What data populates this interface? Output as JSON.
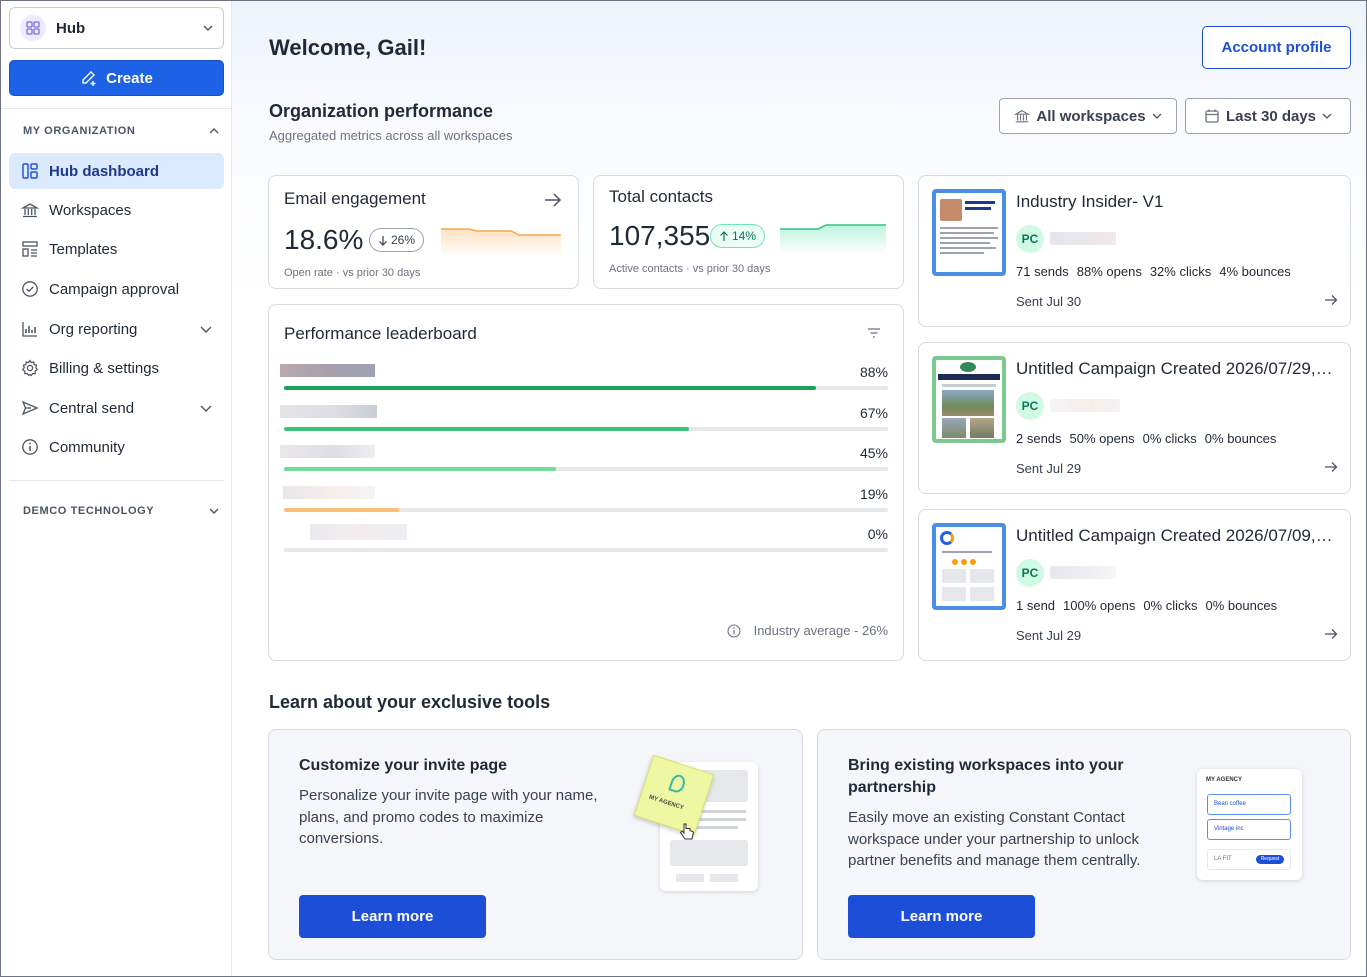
{
  "sidebar": {
    "hub_label": "Hub",
    "create_label": "Create",
    "section_my_org": "MY ORGANIZATION",
    "items": [
      {
        "label": "Hub dashboard",
        "icon": "dashboard-icon",
        "active": true
      },
      {
        "label": "Workspaces",
        "icon": "bank-icon"
      },
      {
        "label": "Templates",
        "icon": "templates-icon"
      },
      {
        "label": "Campaign approval",
        "icon": "check-circle-icon"
      },
      {
        "label": "Org reporting",
        "icon": "chart-icon"
      },
      {
        "label": "Billing & settings",
        "icon": "gear-icon"
      },
      {
        "label": "Central send",
        "icon": "send-icon"
      },
      {
        "label": "Community",
        "icon": "info-icon"
      }
    ],
    "section_demco": "DEMCO TECHNOLOGY"
  },
  "header": {
    "welcome": "Welcome, Gail!",
    "account_profile": "Account profile"
  },
  "performance": {
    "title": "Organization performance",
    "subtitle": "Aggregated metrics across all workspaces",
    "workspace_filter": "All workspaces",
    "date_filter": "Last 30 days"
  },
  "email_engagement": {
    "title": "Email engagement",
    "value": "18.6%",
    "change": "26%",
    "note": "Open rate · vs prior 30 days"
  },
  "total_contacts": {
    "title": "Total contacts",
    "value": "107,355",
    "change": "14%",
    "note": "Active contacts · vs prior 30 days"
  },
  "leaderboard": {
    "title": "Performance leaderboard",
    "rows": [
      {
        "pct": "88%",
        "value": 88,
        "color": "#1aa35a"
      },
      {
        "pct": "67%",
        "value": 67,
        "color": "#3cc27a"
      },
      {
        "pct": "45%",
        "value": 45,
        "color": "#6fdc9c"
      },
      {
        "pct": "19%",
        "value": 19,
        "color": "#fbbf77"
      },
      {
        "pct": "0%",
        "value": 0,
        "color": "#e5e7eb"
      }
    ],
    "industry_avg": "Industry average - 26%"
  },
  "campaigns": [
    {
      "title": "Industry Insider- V1",
      "badge": "PC",
      "sends": "71 sends",
      "opens": "88% opens",
      "clicks": "32% clicks",
      "bounces": "4% bounces",
      "date": "Sent Jul 30"
    },
    {
      "title": "Untitled Campaign Created 2026/07/29, 3:...",
      "badge": "PC",
      "sends": "2 sends",
      "opens": "50% opens",
      "clicks": "0% clicks",
      "bounces": "0% bounces",
      "date": "Sent Jul 29"
    },
    {
      "title": "Untitled Campaign Created 2026/07/09, 12...",
      "badge": "PC",
      "sends": "1 send",
      "opens": "100% opens",
      "clicks": "0% clicks",
      "bounces": "0% bounces",
      "date": "Sent Jul 29"
    }
  ],
  "tools": {
    "title": "Learn about your exclusive tools",
    "cards": [
      {
        "heading": "Customize your invite page",
        "body": "Personalize your invite page with your name, plans, and promo codes to maximize conversions.",
        "button": "Learn more",
        "illus_label": "MY AGENCY"
      },
      {
        "heading_line1": "Bring existing workspaces into your",
        "heading_line2": "partnership",
        "body": "Easily move an existing Constant Contact workspace under your partnership to unlock partner benefits and manage them centrally.",
        "button": "Learn more",
        "illus": {
          "title": "MY AGENCY",
          "item1": "Bean coffee",
          "item2": "Vintage inc",
          "item3": "LA FIT",
          "action": "Request"
        }
      }
    ]
  }
}
